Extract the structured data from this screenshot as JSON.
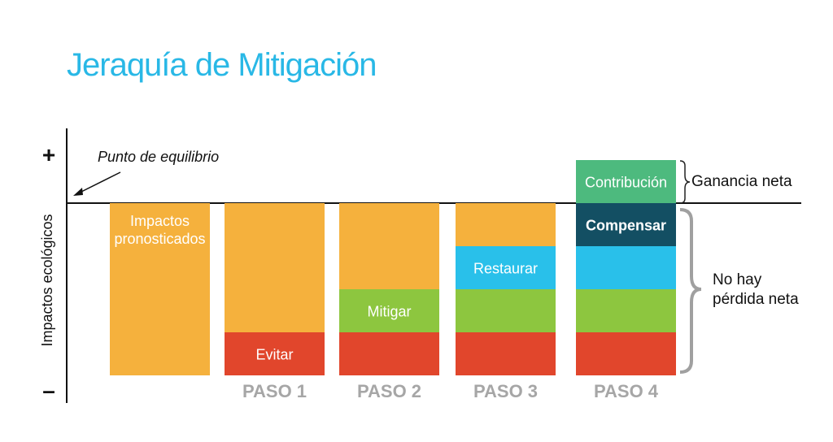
{
  "title": "Jeraquía de Mitigación",
  "axis": {
    "ylabel": "Impactos ecológicos",
    "plus": "+",
    "minus": "–",
    "equilibrium_label": "Punto de equilibrio"
  },
  "colors": {
    "title": "#29b8e6",
    "impacts": "#f5b13d",
    "avoid": "#e1462c",
    "mitigate": "#8dc63f",
    "restore": "#29c0ea",
    "compensate": "#134f63",
    "contribution": "#4dba7e",
    "step_label": "#a6a6a6",
    "bracket": "#a0a0a0"
  },
  "columns": [
    {
      "step": "",
      "segments": [
        {
          "key": "impacts",
          "label": "Impactos\npronosticados",
          "from": 0,
          "to": 4,
          "color": "#f5b13d"
        }
      ]
    },
    {
      "step": "PASO 1",
      "segments": [
        {
          "key": "impacts",
          "label": "",
          "from": 1,
          "to": 4,
          "color": "#f5b13d"
        },
        {
          "key": "avoid",
          "label": "Evitar",
          "from": 0,
          "to": 1,
          "color": "#e1462c"
        }
      ]
    },
    {
      "step": "PASO 2",
      "segments": [
        {
          "key": "impacts",
          "label": "",
          "from": 2,
          "to": 4,
          "color": "#f5b13d"
        },
        {
          "key": "mitigate",
          "label": "Mitigar",
          "from": 1,
          "to": 2,
          "color": "#8dc63f"
        },
        {
          "key": "avoid",
          "label": "",
          "from": 0,
          "to": 1,
          "color": "#e1462c"
        }
      ]
    },
    {
      "step": "PASO 3",
      "segments": [
        {
          "key": "impacts",
          "label": "",
          "from": 3,
          "to": 4,
          "color": "#f5b13d"
        },
        {
          "key": "restore",
          "label": "Restaurar",
          "from": 2,
          "to": 3,
          "color": "#29c0ea"
        },
        {
          "key": "mitigate",
          "label": "",
          "from": 1,
          "to": 2,
          "color": "#8dc63f"
        },
        {
          "key": "avoid",
          "label": "",
          "from": 0,
          "to": 1,
          "color": "#e1462c"
        }
      ]
    },
    {
      "step": "PASO 4",
      "segments": [
        {
          "key": "contribution",
          "label": "Contribución",
          "from": 4,
          "to": 5,
          "color": "#4dba7e"
        },
        {
          "key": "compensate",
          "label": "Compensar",
          "from": 3,
          "to": 4,
          "color": "#134f63"
        },
        {
          "key": "restore",
          "label": "",
          "from": 2,
          "to": 3,
          "color": "#29c0ea"
        },
        {
          "key": "mitigate",
          "label": "",
          "from": 1,
          "to": 2,
          "color": "#8dc63f"
        },
        {
          "key": "avoid",
          "label": "",
          "from": 0,
          "to": 1,
          "color": "#e1462c"
        }
      ]
    }
  ],
  "brackets": {
    "net_gain": "Ganancia neta",
    "no_net_loss": "No hay\npérdida neta"
  }
}
